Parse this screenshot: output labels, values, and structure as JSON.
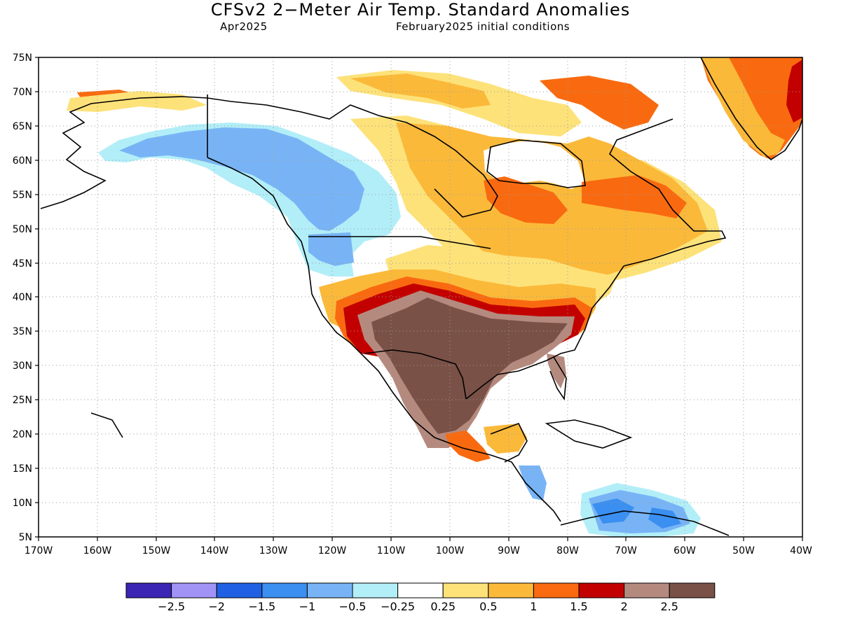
{
  "title": "CFSv2 2−Meter Air Temp. Standard Anomalies",
  "valid_month": "Apr2025",
  "initial_conditions": "February2025 initial conditions",
  "lat_labels": [
    "75N",
    "70N",
    "65N",
    "60N",
    "55N",
    "50N",
    "45N",
    "40N",
    "35N",
    "30N",
    "25N",
    "20N",
    "15N",
    "10N",
    "5N"
  ],
  "lon_labels": [
    "170W",
    "160W",
    "150W",
    "140W",
    "130W",
    "120W",
    "110W",
    "100W",
    "90W",
    "80W",
    "70W",
    "60W",
    "50W",
    "40W"
  ],
  "colorbar": {
    "colors": [
      "#3a25b4",
      "#a093f5",
      "#1f61e2",
      "#3a8ff0",
      "#78b4f5",
      "#b2eef8",
      "#ffffff",
      "#fde27a",
      "#fbb93a",
      "#f96a10",
      "#c30000",
      "#b58a7e",
      "#7a5147"
    ],
    "labels": [
      "−2.5",
      "−2",
      "−1.5",
      "−1",
      "−0.5",
      "−0.25",
      "0.25",
      "0.5",
      "1",
      "1.5",
      "2",
      "2.5"
    ]
  },
  "icons": [
    "map-frame",
    "colorbar"
  ]
}
